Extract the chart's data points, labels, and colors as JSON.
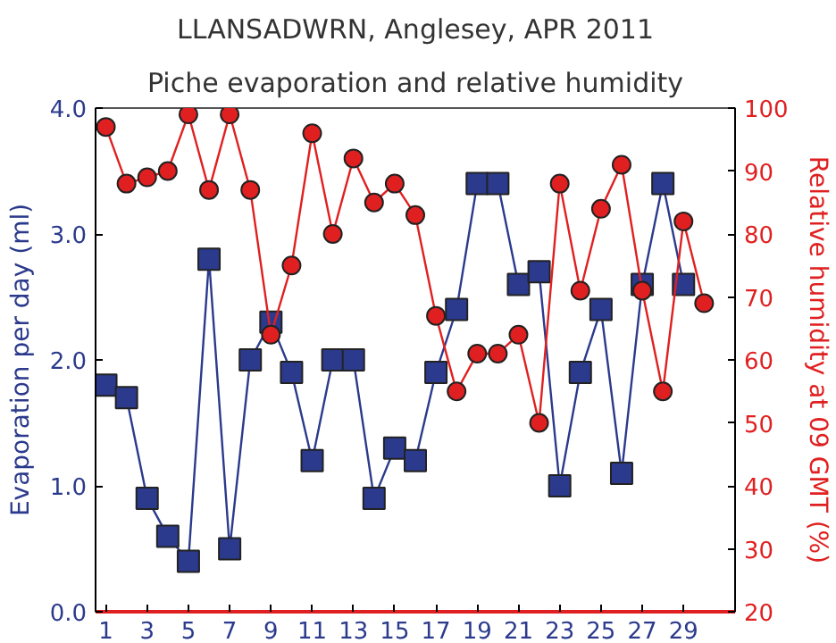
{
  "chart_data": {
    "type": "line",
    "title": "LLANSADWRN, Anglesey, APR 2011",
    "subtitle": "Piche evaporation and relative humidity",
    "ylabel": "Evaporation per day (ml)",
    "y2label": "Relative humidity at 09 GMT (%)",
    "x": [
      1,
      2,
      3,
      4,
      5,
      6,
      7,
      8,
      9,
      10,
      11,
      12,
      13,
      14,
      15,
      16,
      17,
      18,
      19,
      20,
      21,
      22,
      23,
      24,
      25,
      26,
      27,
      28,
      29,
      30
    ],
    "xlim": [
      0.5,
      31.5
    ],
    "xticks": [
      1,
      3,
      5,
      7,
      9,
      11,
      13,
      15,
      17,
      19,
      21,
      23,
      25,
      27,
      29
    ],
    "ylim": [
      0,
      4
    ],
    "yticks": [
      {
        "value": 0,
        "label": "0.0"
      },
      {
        "value": 1,
        "label": "1.0"
      },
      {
        "value": 2,
        "label": "2.0"
      },
      {
        "value": 3,
        "label": "3.0"
      },
      {
        "value": 4,
        "label": "4.0"
      }
    ],
    "y2lim": [
      20,
      100
    ],
    "y2ticks": [
      20,
      30,
      40,
      50,
      60,
      70,
      80,
      90,
      100
    ],
    "grid": false,
    "series": [
      {
        "color": "#2b3a8c",
        "marker": "square",
        "values": [
          1.8,
          1.7,
          0.9,
          0.6,
          0.4,
          2.8,
          0.5,
          2.0,
          2.3,
          1.9,
          1.2,
          2.0,
          2.0,
          0.9,
          1.3,
          1.2,
          1.9,
          2.4,
          3.4,
          3.4,
          2.6,
          2.7,
          1.0,
          1.9,
          2.4,
          1.1,
          2.6,
          3.4,
          2.6,
          null
        ]
      },
      {
        "color": "#e02020",
        "marker": "circle",
        "axis": "y2",
        "values": [
          97,
          88,
          89,
          90,
          99,
          87,
          99,
          87,
          64,
          75,
          96,
          80,
          92,
          85,
          88,
          83,
          67,
          55,
          61,
          61,
          64,
          50,
          88,
          71,
          84,
          91,
          71,
          55,
          82,
          69
        ]
      }
    ]
  }
}
